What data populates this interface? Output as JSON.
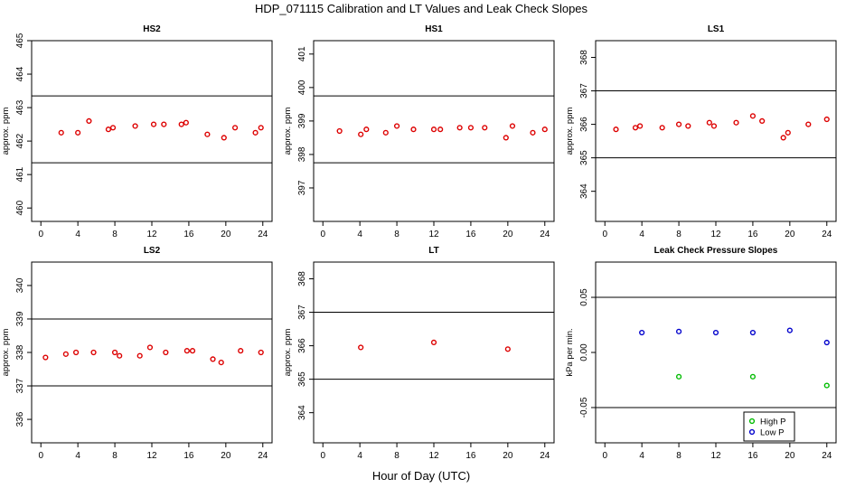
{
  "figure": {
    "title": "HDP_071115  Calibration and LT Values and Leak Check Slopes",
    "xlabel": "Hour of Day (UTC)"
  },
  "colors": {
    "red": "#dd0000",
    "green": "#00bb00",
    "blue": "#0000cc",
    "axis": "#000000"
  },
  "chart_data": [
    {
      "type": "scatter",
      "title": "HS2",
      "ylabel": "approx. ppm",
      "xlim": [
        -1,
        25
      ],
      "ylim": [
        459.6,
        465.0
      ],
      "xticks": [
        0,
        4,
        8,
        12,
        16,
        20,
        24
      ],
      "yticks": [
        460,
        461,
        462,
        463,
        464,
        465
      ],
      "hlines": [
        463.35,
        461.35
      ],
      "series": [
        {
          "name": "HS2",
          "color": "red",
          "x": [
            2.2,
            4.0,
            5.2,
            7.3,
            7.8,
            10.2,
            12.2,
            13.3,
            15.2,
            15.7,
            18.0,
            19.8,
            21.0,
            23.2,
            23.8
          ],
          "y": [
            462.25,
            462.25,
            462.6,
            462.35,
            462.4,
            462.45,
            462.5,
            462.5,
            462.5,
            462.55,
            462.2,
            462.1,
            462.4,
            462.25,
            462.4
          ]
        }
      ]
    },
    {
      "type": "scatter",
      "title": "HS1",
      "ylabel": "approx. ppm",
      "xlim": [
        -1,
        25
      ],
      "ylim": [
        396.0,
        401.4
      ],
      "xticks": [
        0,
        4,
        8,
        12,
        16,
        20,
        24
      ],
      "yticks": [
        397,
        398,
        399,
        400,
        401
      ],
      "hlines": [
        399.75,
        397.75
      ],
      "series": [
        {
          "name": "HS1",
          "color": "red",
          "x": [
            1.8,
            4.1,
            4.7,
            6.8,
            8.0,
            9.8,
            12.0,
            12.7,
            14.8,
            16.0,
            17.5,
            19.8,
            20.5,
            22.7,
            24.0
          ],
          "y": [
            398.7,
            398.6,
            398.75,
            398.65,
            398.85,
            398.75,
            398.75,
            398.75,
            398.8,
            398.8,
            398.8,
            398.5,
            398.85,
            398.65,
            398.75
          ]
        }
      ]
    },
    {
      "type": "scatter",
      "title": "LS1",
      "ylabel": "approx. ppm",
      "xlim": [
        -1,
        25
      ],
      "ylim": [
        363.1,
        368.5
      ],
      "xticks": [
        0,
        4,
        8,
        12,
        16,
        20,
        24
      ],
      "yticks": [
        364,
        365,
        366,
        367,
        368
      ],
      "hlines": [
        367.0,
        365.0
      ],
      "series": [
        {
          "name": "LS1",
          "color": "red",
          "x": [
            1.2,
            3.3,
            3.8,
            6.2,
            8.0,
            9.0,
            11.3,
            11.8,
            14.2,
            16.0,
            17.0,
            19.3,
            19.8,
            22.0,
            24.0
          ],
          "y": [
            365.85,
            365.9,
            365.95,
            365.9,
            366.0,
            365.95,
            366.05,
            365.95,
            366.05,
            366.25,
            366.1,
            365.6,
            365.75,
            366.0,
            366.15
          ]
        }
      ]
    },
    {
      "type": "scatter",
      "title": "LS2",
      "ylabel": "approx. ppm",
      "xlim": [
        -1,
        25
      ],
      "ylim": [
        335.3,
        340.7
      ],
      "xticks": [
        0,
        4,
        8,
        12,
        16,
        20,
        24
      ],
      "yticks": [
        336,
        337,
        338,
        339,
        340
      ],
      "hlines": [
        339.0,
        337.0
      ],
      "series": [
        {
          "name": "LS2",
          "color": "red",
          "x": [
            0.5,
            2.7,
            3.8,
            5.7,
            8.0,
            8.5,
            10.7,
            11.8,
            13.5,
            15.8,
            16.4,
            18.6,
            19.5,
            21.6,
            23.8
          ],
          "y": [
            337.85,
            337.95,
            338.0,
            338.0,
            338.0,
            337.9,
            337.9,
            338.15,
            338.0,
            338.05,
            338.05,
            337.8,
            337.7,
            338.05,
            338.0
          ]
        }
      ]
    },
    {
      "type": "scatter",
      "title": "LT",
      "ylabel": "approx. ppm",
      "xlim": [
        -1,
        25
      ],
      "ylim": [
        363.1,
        368.5
      ],
      "xticks": [
        0,
        4,
        8,
        12,
        16,
        20,
        24
      ],
      "yticks": [
        364,
        365,
        366,
        367,
        368
      ],
      "hlines": [
        367.0,
        365.0
      ],
      "series": [
        {
          "name": "LT",
          "color": "red",
          "x": [
            4.1,
            12.0,
            20.0
          ],
          "y": [
            365.95,
            366.1,
            365.9
          ]
        }
      ]
    },
    {
      "type": "scatter",
      "title": "Leak Check Pressure Slopes",
      "ylabel": "kPa per min.",
      "xlim": [
        -1,
        25
      ],
      "ylim": [
        -0.082,
        0.082
      ],
      "xticks": [
        0,
        4,
        8,
        12,
        16,
        20,
        24
      ],
      "yticks": [
        -0.05,
        0.0,
        0.05
      ],
      "ytick_labels": [
        "-0.05",
        "0.00",
        "0.05"
      ],
      "hlines": [
        0.05,
        -0.05
      ],
      "legend": {
        "position": "bottom-right",
        "entries": [
          "High P",
          "Low P"
        ]
      },
      "series": [
        {
          "name": "High P",
          "color": "green",
          "x": [
            8.0,
            16.0,
            24.0
          ],
          "y": [
            -0.022,
            -0.022,
            -0.03
          ]
        },
        {
          "name": "Low P",
          "color": "blue",
          "x": [
            4.0,
            8.0,
            12.0,
            16.0,
            20.0,
            24.0
          ],
          "y": [
            0.018,
            0.019,
            0.018,
            0.018,
            0.02,
            0.009
          ]
        }
      ]
    }
  ]
}
